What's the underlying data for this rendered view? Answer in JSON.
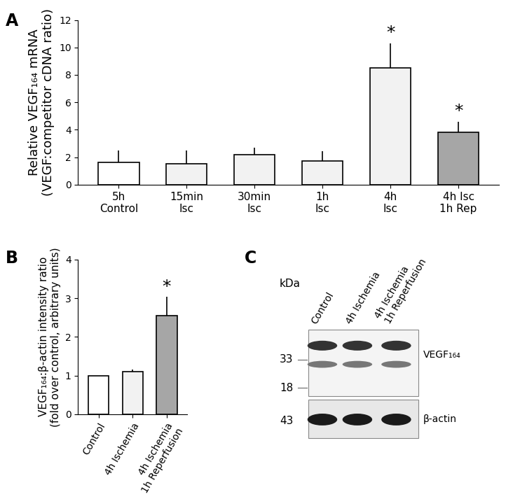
{
  "chart_data": [
    {
      "type": "bar",
      "title": "A",
      "categories": [
        "5h\nControl",
        "15min\nIsc",
        "30min\nIsc",
        "1h\nIsc",
        "4h\nIsc",
        "4h Isc\n1h Rep"
      ],
      "values": [
        1.6,
        1.5,
        2.2,
        1.7,
        8.5,
        3.8
      ],
      "errors": [
        0.9,
        1.0,
        0.5,
        0.75,
        1.8,
        0.8
      ],
      "significance": [
        null,
        null,
        null,
        null,
        "*",
        "*"
      ],
      "colors": [
        "#ffffff",
        "#f2f2f2",
        "#f2f2f2",
        "#f2f2f2",
        "#f2f2f2",
        "#a6a6a6"
      ],
      "y_label": "Relative VEGF₁₆₄ mRNA\n(VEGF:competitor cDNA ratio)",
      "ylim": [
        0,
        12
      ],
      "yticks": [
        0,
        2,
        4,
        6,
        8,
        10,
        12
      ],
      "grid": false
    },
    {
      "type": "bar",
      "title": "B",
      "categories": [
        "Control",
        "4h Ischemia",
        "4h Ischemia\n1h Reperfusion"
      ],
      "values": [
        1.0,
        1.1,
        2.55
      ],
      "errors": [
        0.0,
        0.06,
        0.48
      ],
      "significance": [
        null,
        null,
        "*"
      ],
      "colors": [
        "#ffffff",
        "#f2f2f2",
        "#a6a6a6"
      ],
      "y_label": "VEGF₁₆₄:β-actin intensity ratio\n(fold over control, arbitrary units)",
      "ylim": [
        0,
        4
      ],
      "yticks": [
        0,
        1,
        2,
        3,
        4
      ],
      "grid": false
    }
  ],
  "blot": {
    "title": "C",
    "lanes": [
      "Control",
      "4h Ischemia",
      "4h Ischemia\n1h Reperfusion"
    ],
    "unit": "kDa",
    "markers": [
      33,
      18,
      43
    ],
    "bands": [
      "VEGF₁₆₄",
      "β-actin"
    ]
  }
}
